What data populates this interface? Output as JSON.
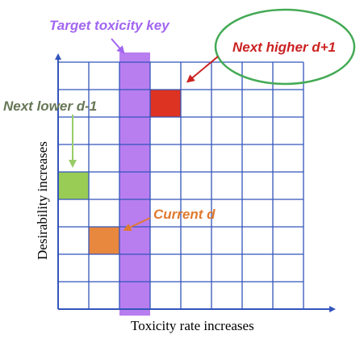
{
  "labels": {
    "target_key": "Target toxicity key",
    "next_higher": "Next higher d+1",
    "next_lower": "Next lower d-1",
    "current": "Current d",
    "x_axis": "Toxicity rate increases",
    "y_axis": "Desirability increases"
  },
  "grid": {
    "cols": 8,
    "rows": 9
  },
  "key_column": 2,
  "highlighted_cells": [
    {
      "role": "next-higher",
      "col": 3,
      "row": 1
    },
    {
      "role": "next-lower",
      "col": 0,
      "row": 4
    },
    {
      "role": "current",
      "col": 1,
      "row": 6
    }
  ],
  "colors": {
    "grid_line": "#3355bb",
    "key_column": "#b87ef0",
    "next_higher": "#dd3322",
    "next_lower": "#99cc55",
    "current": "#e8873e",
    "target_text": "#a266f0",
    "next_higher_text": "#cc2222",
    "next_lower_text": "#667755",
    "current_text": "#e07a30",
    "ellipse": "#44aa55",
    "arrow_lower": "#99cc66",
    "arrow_red": "#cc2222",
    "arrow_orange": "#e07a30",
    "arrow_purple": "#a266f0"
  }
}
